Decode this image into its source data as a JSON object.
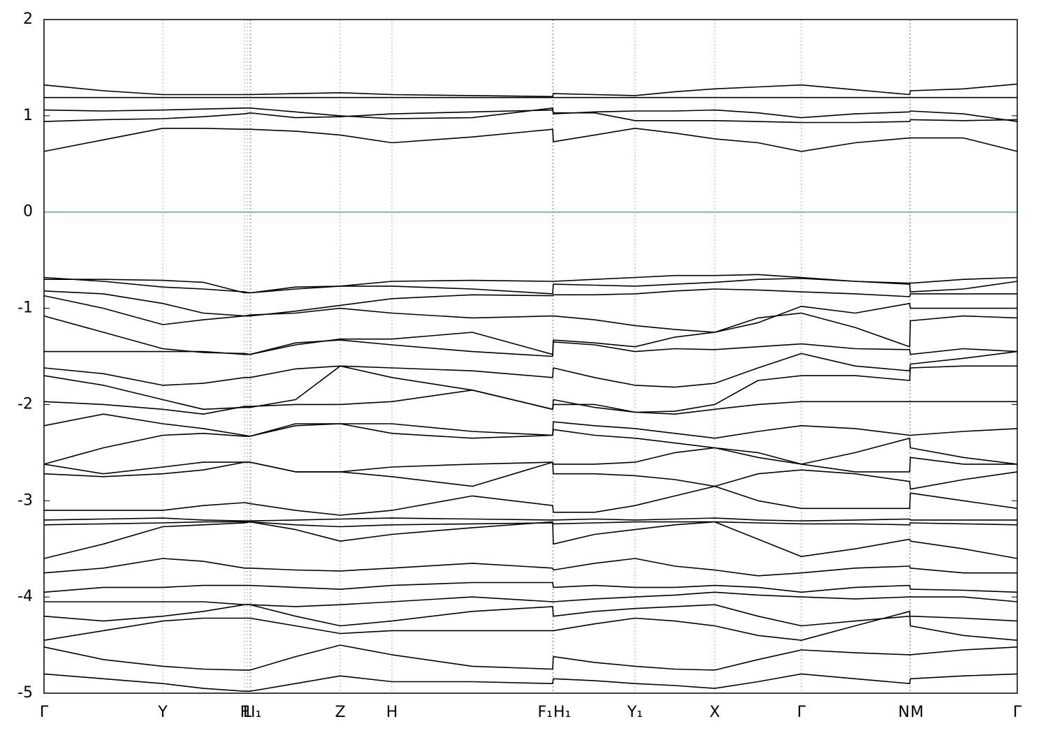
{
  "chart_data": {
    "type": "line",
    "color": "#000000",
    "reference_line": 0,
    "reference_color": "#4aa8c0",
    "grid": true,
    "xlim": [
      0,
      13.93
    ],
    "xticks": [
      {
        "value": 0,
        "label": "Γ"
      },
      {
        "value": 1.7,
        "label": "Y"
      },
      {
        "value": 2.87,
        "label": "F"
      },
      {
        "value": 2.91,
        "label": "L"
      },
      {
        "value": 2.95,
        "label": "I"
      },
      {
        "value": 2.96,
        "label": "I₁"
      },
      {
        "value": 4.24,
        "label": "Z"
      },
      {
        "value": 4.98,
        "label": "H"
      },
      {
        "value": 7.28,
        "label": "F₁"
      },
      {
        "value": 7.29,
        "label": "H₁"
      },
      {
        "value": 8.46,
        "label": "Y₁"
      },
      {
        "value": 9.6,
        "label": "X"
      },
      {
        "value": 10.84,
        "label": "Γ"
      },
      {
        "value": 12.39,
        "label": "N"
      },
      {
        "value": 12.4,
        "label": "M"
      },
      {
        "value": 13.93,
        "label": "Γ"
      }
    ],
    "ylim": [
      -5,
      2
    ],
    "yticks": [
      2,
      1,
      0,
      -1,
      -2,
      -3,
      -4,
      -5
    ],
    "x": [
      0,
      0.85,
      1.7,
      2.28,
      2.87,
      2.95,
      3.6,
      4.24,
      4.98,
      6.13,
      7.28,
      7.29,
      7.88,
      8.46,
      9.03,
      9.6,
      10.22,
      10.84,
      11.61,
      12.39,
      12.4,
      13.16,
      13.93
    ],
    "series": [
      {
        "values": [
          0.63,
          0.75,
          0.87,
          0.87,
          0.86,
          0.86,
          0.84,
          0.8,
          0.72,
          0.78,
          0.86,
          0.73,
          0.8,
          0.87,
          0.82,
          0.76,
          0.72,
          0.63,
          0.72,
          0.77,
          0.77,
          0.77,
          0.63
        ]
      },
      {
        "values": [
          0.94,
          0.96,
          0.97,
          0.99,
          1.02,
          1.03,
          0.98,
          0.99,
          1.02,
          1.04,
          1.06,
          1.02,
          1.04,
          1.05,
          1.05,
          1.06,
          1.03,
          0.98,
          1.02,
          1.04,
          1.05,
          1.02,
          0.94
        ]
      },
      {
        "values": [
          1.06,
          1.05,
          1.06,
          1.07,
          1.08,
          1.08,
          1.04,
          1.0,
          0.97,
          0.98,
          1.08,
          1.03,
          1.03,
          0.95,
          0.95,
          0.95,
          0.94,
          0.93,
          0.93,
          0.94,
          0.96,
          0.95,
          0.96
        ]
      },
      {
        "values": [
          1.19,
          1.19,
          1.19,
          1.19,
          1.19,
          1.19,
          1.19,
          1.19,
          1.19,
          1.19,
          1.19,
          1.19,
          1.19,
          1.19,
          1.19,
          1.19,
          1.19,
          1.19,
          1.19,
          1.19,
          1.19,
          1.19,
          1.19
        ]
      },
      {
        "values": [
          1.32,
          1.26,
          1.22,
          1.22,
          1.22,
          1.22,
          1.23,
          1.24,
          1.22,
          1.21,
          1.2,
          1.23,
          1.22,
          1.21,
          1.25,
          1.28,
          1.3,
          1.32,
          1.27,
          1.22,
          1.26,
          1.28,
          1.33
        ]
      },
      {
        "values": [
          -0.68,
          -0.72,
          -0.78,
          -0.8,
          -0.83,
          -0.84,
          -0.8,
          -0.77,
          -0.72,
          -0.71,
          -0.72,
          -0.72,
          -0.7,
          -0.68,
          -0.66,
          -0.66,
          -0.65,
          -0.68,
          -0.72,
          -0.74,
          -0.74,
          -0.7,
          -0.68
        ]
      },
      {
        "values": [
          -0.7,
          -0.7,
          -0.71,
          -0.73,
          -0.84,
          -0.84,
          -0.78,
          -0.77,
          -0.77,
          -0.8,
          -0.85,
          -0.75,
          -0.76,
          -0.77,
          -0.75,
          -0.73,
          -0.7,
          -0.69,
          -0.72,
          -0.75,
          -0.83,
          -0.8,
          -0.72
        ]
      },
      {
        "values": [
          -0.82,
          -0.85,
          -0.95,
          -1.05,
          -1.08,
          -1.08,
          -1.03,
          -0.97,
          -0.9,
          -0.86,
          -0.87,
          -0.86,
          -0.86,
          -0.85,
          -0.82,
          -0.8,
          -0.81,
          -0.83,
          -0.85,
          -0.88,
          -0.85,
          -0.85,
          -0.85
        ]
      },
      {
        "values": [
          -0.87,
          -1.0,
          -1.17,
          -1.12,
          -1.08,
          -1.07,
          -1.05,
          -1.0,
          -1.05,
          -1.1,
          -1.08,
          -1.08,
          -1.12,
          -1.18,
          -1.22,
          -1.25,
          -1.15,
          -0.98,
          -1.05,
          -0.95,
          -1.0,
          -1.0,
          -1.0
        ]
      },
      {
        "values": [
          -1.08,
          -1.25,
          -1.42,
          -1.46,
          -1.47,
          -1.48,
          -1.38,
          -1.32,
          -1.32,
          -1.25,
          -1.48,
          -1.33,
          -1.36,
          -1.4,
          -1.3,
          -1.25,
          -1.1,
          -1.05,
          -1.2,
          -1.4,
          -1.13,
          -1.08,
          -1.1
        ]
      },
      {
        "values": [
          -1.45,
          -1.45,
          -1.45,
          -1.45,
          -1.48,
          -1.48,
          -1.36,
          -1.33,
          -1.38,
          -1.45,
          -1.5,
          -1.35,
          -1.38,
          -1.45,
          -1.42,
          -1.43,
          -1.4,
          -1.37,
          -1.42,
          -1.43,
          -1.48,
          -1.42,
          -1.45
        ]
      },
      {
        "values": [
          -1.62,
          -1.68,
          -1.8,
          -1.78,
          -1.72,
          -1.72,
          -1.63,
          -1.6,
          -1.62,
          -1.65,
          -1.72,
          -1.62,
          -1.72,
          -1.8,
          -1.82,
          -1.78,
          -1.62,
          -1.47,
          -1.6,
          -1.65,
          -1.58,
          -1.52,
          -1.45
        ]
      },
      {
        "values": [
          -1.7,
          -1.8,
          -1.95,
          -2.05,
          -2.03,
          -2.03,
          -1.95,
          -1.6,
          -1.72,
          -1.85,
          -2.05,
          -1.95,
          -2.03,
          -2.08,
          -2.07,
          -2.0,
          -1.75,
          -1.7,
          -1.7,
          -1.75,
          -1.62,
          -1.6,
          -1.6
        ]
      },
      {
        "values": [
          -1.97,
          -2.0,
          -2.05,
          -2.1,
          -2.02,
          -2.02,
          -2.0,
          -2.0,
          -1.97,
          -1.85,
          -2.05,
          -2.0,
          -2.0,
          -2.08,
          -2.1,
          -2.05,
          -2.0,
          -1.97,
          -1.97,
          -1.97,
          -1.97,
          -1.97,
          -1.97
        ]
      },
      {
        "values": [
          -2.22,
          -2.1,
          -2.2,
          -2.25,
          -2.32,
          -2.33,
          -2.22,
          -2.2,
          -2.2,
          -2.28,
          -2.32,
          -2.18,
          -2.22,
          -2.25,
          -2.3,
          -2.35,
          -2.28,
          -2.22,
          -2.25,
          -2.32,
          -2.32,
          -2.28,
          -2.25
        ]
      },
      {
        "values": [
          -2.62,
          -2.45,
          -2.32,
          -2.3,
          -2.33,
          -2.33,
          -2.2,
          -2.2,
          -2.3,
          -2.35,
          -2.32,
          -2.26,
          -2.32,
          -2.35,
          -2.4,
          -2.45,
          -2.55,
          -2.62,
          -2.5,
          -2.35,
          -2.45,
          -2.55,
          -2.62
        ]
      },
      {
        "values": [
          -2.62,
          -2.72,
          -2.65,
          -2.6,
          -2.6,
          -2.6,
          -2.7,
          -2.7,
          -2.65,
          -2.62,
          -2.6,
          -2.62,
          -2.62,
          -2.6,
          -2.5,
          -2.45,
          -2.5,
          -2.62,
          -2.7,
          -2.7,
          -2.55,
          -2.62,
          -2.62
        ]
      },
      {
        "values": [
          -2.72,
          -2.75,
          -2.72,
          -2.68,
          -2.6,
          -2.6,
          -2.7,
          -2.7,
          -2.75,
          -2.85,
          -2.6,
          -2.72,
          -2.72,
          -2.74,
          -2.78,
          -2.85,
          -2.72,
          -2.68,
          -2.72,
          -2.8,
          -2.88,
          -2.78,
          -2.7
        ]
      },
      {
        "values": [
          -3.1,
          -3.1,
          -3.1,
          -3.05,
          -3.02,
          -3.03,
          -3.1,
          -3.15,
          -3.1,
          -2.95,
          -3.05,
          -3.12,
          -3.12,
          -3.05,
          -2.95,
          -2.85,
          -3.0,
          -3.08,
          -3.08,
          -3.08,
          -2.92,
          -3.0,
          -3.08
        ]
      },
      {
        "values": [
          -3.2,
          -3.19,
          -3.18,
          -3.2,
          -3.21,
          -3.21,
          -3.2,
          -3.19,
          -3.18,
          -3.19,
          -3.2,
          -3.2,
          -3.19,
          -3.2,
          -3.19,
          -3.18,
          -3.2,
          -3.21,
          -3.2,
          -3.19,
          -3.2,
          -3.2,
          -3.2
        ]
      },
      {
        "values": [
          -3.25,
          -3.24,
          -3.23,
          -3.22,
          -3.22,
          -3.22,
          -3.25,
          -3.27,
          -3.25,
          -3.24,
          -3.23,
          -3.24,
          -3.23,
          -3.22,
          -3.22,
          -3.22,
          -3.23,
          -3.24,
          -3.24,
          -3.25,
          -3.23,
          -3.24,
          -3.25
        ]
      },
      {
        "values": [
          -3.6,
          -3.45,
          -3.27,
          -3.25,
          -3.23,
          -3.22,
          -3.3,
          -3.42,
          -3.35,
          -3.28,
          -3.22,
          -3.45,
          -3.35,
          -3.3,
          -3.25,
          -3.22,
          -3.4,
          -3.58,
          -3.5,
          -3.4,
          -3.42,
          -3.5,
          -3.6
        ]
      },
      {
        "values": [
          -3.75,
          -3.7,
          -3.6,
          -3.63,
          -3.7,
          -3.7,
          -3.72,
          -3.73,
          -3.7,
          -3.65,
          -3.7,
          -3.72,
          -3.65,
          -3.6,
          -3.68,
          -3.72,
          -3.78,
          -3.75,
          -3.7,
          -3.68,
          -3.7,
          -3.75,
          -3.75
        ]
      },
      {
        "values": [
          -3.95,
          -3.9,
          -3.9,
          -3.88,
          -3.88,
          -3.88,
          -3.9,
          -3.92,
          -3.88,
          -3.85,
          -3.85,
          -3.9,
          -3.88,
          -3.9,
          -3.9,
          -3.88,
          -3.9,
          -3.95,
          -3.9,
          -3.88,
          -3.92,
          -3.93,
          -3.95
        ]
      },
      {
        "values": [
          -4.05,
          -4.05,
          -4.05,
          -4.05,
          -4.08,
          -4.08,
          -4.1,
          -4.08,
          -4.05,
          -4.0,
          -4.05,
          -4.05,
          -4.02,
          -4.0,
          -3.98,
          -3.95,
          -3.98,
          -4.0,
          -4.02,
          -4.0,
          -4.0,
          -4.0,
          -4.05
        ]
      },
      {
        "values": [
          -4.2,
          -4.25,
          -4.2,
          -4.15,
          -4.08,
          -4.08,
          -4.2,
          -4.3,
          -4.25,
          -4.15,
          -4.1,
          -4.2,
          -4.15,
          -4.12,
          -4.1,
          -4.08,
          -4.2,
          -4.3,
          -4.25,
          -4.2,
          -4.2,
          -4.22,
          -4.25
        ]
      },
      {
        "values": [
          -4.45,
          -4.35,
          -4.25,
          -4.22,
          -4.22,
          -4.22,
          -4.3,
          -4.38,
          -4.35,
          -4.35,
          -4.35,
          -4.35,
          -4.28,
          -4.22,
          -4.25,
          -4.3,
          -4.4,
          -4.45,
          -4.3,
          -4.15,
          -4.3,
          -4.4,
          -4.45
        ]
      },
      {
        "values": [
          -4.52,
          -4.65,
          -4.72,
          -4.75,
          -4.76,
          -4.76,
          -4.62,
          -4.5,
          -4.6,
          -4.72,
          -4.75,
          -4.62,
          -4.68,
          -4.72,
          -4.75,
          -4.76,
          -4.65,
          -4.55,
          -4.58,
          -4.6,
          -4.6,
          -4.55,
          -4.52
        ]
      },
      {
        "values": [
          -4.8,
          -4.85,
          -4.9,
          -4.95,
          -4.98,
          -4.98,
          -4.9,
          -4.82,
          -4.88,
          -4.88,
          -4.9,
          -4.85,
          -4.87,
          -4.9,
          -4.92,
          -4.95,
          -4.88,
          -4.8,
          -4.85,
          -4.9,
          -4.85,
          -4.82,
          -4.8
        ]
      }
    ]
  }
}
